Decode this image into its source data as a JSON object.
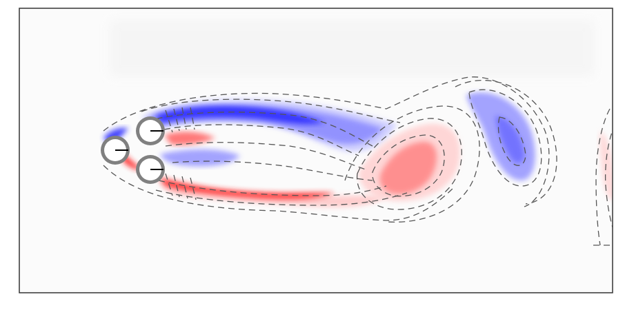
{
  "figure": {
    "background_color": "#ffffff",
    "frame_color": "#333333",
    "positive_vorticity_color": "#ff3b3b",
    "negative_vorticity_color": "#3b3bff",
    "contour_line_color": "#555555",
    "cylinder_fill_color": "#ffffff",
    "cylinder_ring_color": "#808080",
    "cylinder_count": 3,
    "contour_style": "dashed"
  }
}
